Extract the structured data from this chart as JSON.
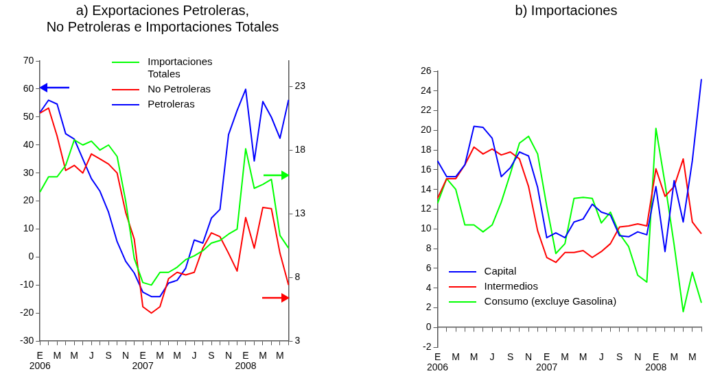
{
  "chart_data": [
    {
      "type": "line",
      "title": "a) Exportaciones Petroleras,\nNo Petroleras e Importaciones Totales",
      "categories": [
        "E\n2006",
        null,
        "M",
        null,
        "M",
        null,
        "J",
        null,
        "S",
        null,
        "N",
        null,
        "E\n2007",
        null,
        "M",
        null,
        "M",
        null,
        "J",
        null,
        "S",
        null,
        "N",
        null,
        "E\n2008",
        null,
        "M",
        null,
        "M",
        null
      ],
      "series": [
        {
          "name": "Importaciones Totales",
          "color": "#00ff00",
          "axis": "y2",
          "values": [
            14.7,
            15.9,
            15.9,
            16.8,
            18.8,
            18.4,
            18.7,
            18.0,
            18.4,
            17.5,
            14.0,
            9.5,
            7.6,
            7.4,
            8.4,
            8.4,
            8.8,
            9.4,
            9.7,
            10.1,
            10.7,
            10.9,
            11.4,
            11.8,
            18.1,
            15.0,
            15.3,
            15.7,
            11.3,
            10.3
          ]
        },
        {
          "name": "No Petroleras",
          "color": "#ff0000",
          "axis": "y2",
          "values": [
            20.9,
            21.3,
            19.1,
            16.4,
            16.8,
            16.2,
            17.7,
            17.3,
            16.9,
            16.2,
            13.1,
            11.0,
            5.7,
            5.2,
            5.7,
            7.9,
            8.4,
            8.2,
            8.4,
            10.3,
            11.5,
            11.2,
            9.9,
            8.5,
            12.7,
            10.3,
            13.5,
            13.4,
            9.9,
            7.4
          ]
        },
        {
          "name": "Petroleras",
          "color": "#0000ff",
          "values": [
            51.6,
            56,
            54.6,
            44,
            42.1,
            35,
            28,
            23.5,
            16,
            5.5,
            -1.5,
            -5.7,
            -12.5,
            -14.1,
            -14.1,
            -9.3,
            -8.3,
            -4,
            6.1,
            5,
            13.9,
            17,
            43.7,
            52.3,
            59.9,
            34.3,
            55.5,
            49.9,
            42.4,
            56.1
          ]
        }
      ],
      "ylim": [
        -30,
        70
      ],
      "yticks": [
        -30,
        -20,
        -10,
        0,
        10,
        20,
        30,
        40,
        50,
        60,
        70
      ],
      "y2lim": [
        3,
        25
      ],
      "y2ticks": [
        3,
        8,
        13,
        18,
        23
      ],
      "grid": false,
      "legend": "top right",
      "marker": "none",
      "line_style": "solid"
    },
    {
      "type": "line",
      "title": "b) Importaciones",
      "categories": [
        "E\n2006",
        null,
        "M",
        null,
        "M",
        null,
        "J",
        null,
        "S",
        null,
        "N",
        null,
        "E\n2007",
        null,
        "M",
        null,
        "M",
        null,
        "J",
        null,
        "S",
        null,
        "N",
        null,
        "E\n2008",
        null,
        "M",
        null,
        "M",
        null
      ],
      "series": [
        {
          "name": "Capital",
          "color": "#0000ff",
          "values": [
            16.9,
            15.3,
            15.3,
            16.5,
            20.4,
            20.3,
            19.2,
            15.3,
            16.2,
            17.8,
            17.4,
            14.2,
            9.1,
            9.6,
            9.1,
            10.7,
            11.0,
            12.5,
            11.7,
            11.4,
            9.3,
            9.2,
            9.7,
            9.4,
            14.3,
            7.7,
            14.9,
            10.7,
            16.9,
            25.2
          ]
        },
        {
          "name": "Intermedios",
          "color": "#ff0000",
          "values": [
            13.1,
            15.1,
            15.1,
            16.5,
            18.3,
            17.6,
            18.1,
            17.5,
            17.8,
            17.1,
            14.3,
            9.8,
            7.1,
            6.6,
            7.6,
            7.6,
            7.8,
            7.1,
            7.7,
            8.5,
            10.2,
            10.3,
            10.5,
            10.3,
            16.1,
            13.3,
            14.3,
            17.1,
            10.7,
            9.5
          ]
        },
        {
          "name": "Consumo (excluye Gasolina)",
          "color": "#00ff00",
          "values": [
            12.6,
            15.1,
            14.0,
            10.4,
            10.4,
            9.7,
            10.4,
            12.7,
            15.6,
            18.7,
            19.4,
            17.6,
            12.3,
            7.5,
            8.5,
            13.1,
            13.2,
            13.1,
            10.6,
            11.7,
            9.5,
            8.2,
            5.3,
            4.6,
            20.2,
            14.6,
            8.4,
            1.6,
            5.6,
            2.5
          ]
        }
      ],
      "ylim": [
        -2,
        26
      ],
      "yticks": [
        -2,
        0,
        2,
        4,
        6,
        8,
        10,
        12,
        14,
        16,
        18,
        20,
        22,
        24,
        26
      ],
      "grid": false,
      "legend": "bottom left",
      "marker": "none",
      "line_style": "solid"
    }
  ]
}
